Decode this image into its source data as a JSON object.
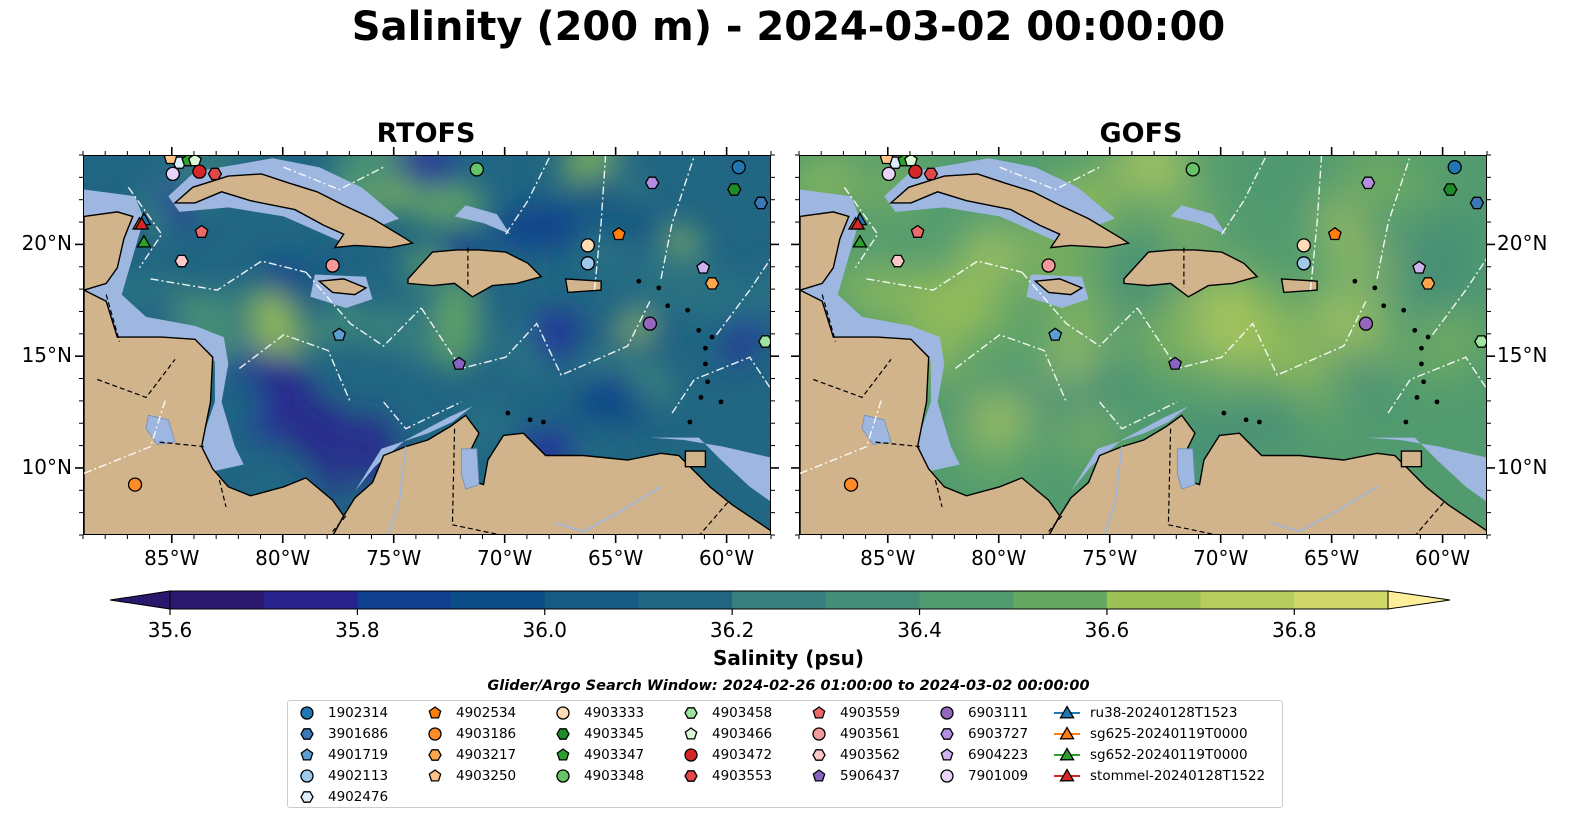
{
  "title": "Salinity (200 m) - 2024-03-02 00:00:00",
  "maps": [
    {
      "id": "rtofs",
      "title": "RTOFS"
    },
    {
      "id": "gofs",
      "title": "GOFS"
    }
  ],
  "axes": {
    "lon_labels": [
      "85°W",
      "80°W",
      "75°W",
      "70°W",
      "65°W",
      "60°W"
    ],
    "lat_labels": [
      "20°N",
      "15°N",
      "10°N"
    ],
    "lon_range": [
      -89,
      -58
    ],
    "lat_range": [
      7,
      24
    ]
  },
  "colorbar": {
    "label": "Salinity (psu)",
    "tick_labels": [
      "35.6",
      "35.8",
      "36.0",
      "36.2",
      "36.4",
      "36.6",
      "36.8"
    ],
    "range": [
      35.6,
      36.9
    ],
    "extend": "both",
    "colormap": "haline",
    "colors": [
      "#2a186c",
      "#29238e",
      "#24309e",
      "#0f3f8e",
      "#0d4d85",
      "#175a83",
      "#216683",
      "#2c7383",
      "#38807f",
      "#448e78",
      "#529b6f",
      "#66a863",
      "#81b45a",
      "#9cc156",
      "#b7cd5d",
      "#d2d96b",
      "#fdee99"
    ]
  },
  "colors": {
    "land": "#d2b48c",
    "shelf": "#9db7e0",
    "deep_pacific": "#2a186c"
  },
  "legend": {
    "caption": "Glider/Argo Search Window: 2024-02-26 01:00:00 to 2024-03-02 00:00:00",
    "items": [
      {
        "label": "1902314",
        "marker": "circle",
        "color": "#1f77b4"
      },
      {
        "label": "3901686",
        "marker": "hexagon",
        "color": "#3a78b6"
      },
      {
        "label": "4901719",
        "marker": "pentagon",
        "color": "#5b9fd0"
      },
      {
        "label": "4902113",
        "marker": "circle",
        "color": "#9ec9ea"
      },
      {
        "label": "4902476",
        "marker": "hexagon",
        "color": "#dbeefc"
      },
      {
        "label": "4902534",
        "marker": "pentagon",
        "color": "#ff7f0e"
      },
      {
        "label": "4903186",
        "marker": "circle",
        "color": "#ff8b2a"
      },
      {
        "label": "4903217",
        "marker": "hexagon",
        "color": "#ffa64d"
      },
      {
        "label": "4903250",
        "marker": "pentagon",
        "color": "#ffc38a"
      },
      {
        "label": "4903333",
        "marker": "circle",
        "color": "#ffdcb5"
      },
      {
        "label": "4903345",
        "marker": "hexagon",
        "color": "#1e8c2a"
      },
      {
        "label": "4903347",
        "marker": "pentagon",
        "color": "#2ca02c"
      },
      {
        "label": "4903348",
        "marker": "circle",
        "color": "#65c465"
      },
      {
        "label": "4903458",
        "marker": "hexagon",
        "color": "#9ee39e"
      },
      {
        "label": "4903466",
        "marker": "pentagon",
        "color": "#dcf9d6"
      },
      {
        "label": "4903472",
        "marker": "circle",
        "color": "#d62728"
      },
      {
        "label": "4903553",
        "marker": "hexagon",
        "color": "#e04848"
      },
      {
        "label": "4903559",
        "marker": "pentagon",
        "color": "#ee6a6a"
      },
      {
        "label": "4903561",
        "marker": "circle",
        "color": "#f59a9a"
      },
      {
        "label": "4903562",
        "marker": "hexagon",
        "color": "#fbc8c8"
      },
      {
        "label": "5906437",
        "marker": "pentagon",
        "color": "#8a63c2"
      },
      {
        "label": "6903111",
        "marker": "circle",
        "color": "#9467bd"
      },
      {
        "label": "6903727",
        "marker": "hexagon",
        "color": "#b48ee0"
      },
      {
        "label": "6904223",
        "marker": "pentagon",
        "color": "#cfb3ef"
      },
      {
        "label": "7901009",
        "marker": "circle",
        "color": "#e8d4fb"
      },
      {
        "label": "ru38-20240128T1523",
        "marker": "triangle-line",
        "color": "#1f77b4"
      },
      {
        "label": "sg625-20240119T0000",
        "marker": "triangle-line",
        "color": "#ff7f0e"
      },
      {
        "label": "sg652-20240119T0000",
        "marker": "triangle-line",
        "color": "#2ca02c"
      },
      {
        "label": "stommel-20240128T1522",
        "marker": "triangle-line",
        "color": "#d62728"
      }
    ]
  },
  "map_markers": [
    {
      "label": "1902314",
      "lon": -59.5,
      "lat": 23.5
    },
    {
      "label": "3901686",
      "lon": -58.5,
      "lat": 21.9
    },
    {
      "label": "4901719",
      "lon": -77.5,
      "lat": 16.0
    },
    {
      "label": "4902113",
      "lon": -66.3,
      "lat": 19.2
    },
    {
      "label": "4902476",
      "lon": -84.7,
      "lat": 23.7
    },
    {
      "label": "4902534",
      "lon": -64.9,
      "lat": 20.5
    },
    {
      "label": "4903186",
      "lon": -86.7,
      "lat": 9.3
    },
    {
      "label": "4903217",
      "lon": -60.7,
      "lat": 18.3
    },
    {
      "label": "4903250",
      "lon": -85.1,
      "lat": 23.9
    },
    {
      "label": "4903333",
      "lon": -66.3,
      "lat": 20.0
    },
    {
      "label": "4903345",
      "lon": -59.7,
      "lat": 22.5
    },
    {
      "label": "4903347",
      "lon": -84.3,
      "lat": 23.8
    },
    {
      "label": "4903348",
      "lon": -71.3,
      "lat": 23.4
    },
    {
      "label": "4903458",
      "lon": -58.3,
      "lat": 15.7
    },
    {
      "label": "4903466",
      "lon": -84.0,
      "lat": 23.8
    },
    {
      "label": "4903472",
      "lon": -83.8,
      "lat": 23.3
    },
    {
      "label": "4903553",
      "lon": -83.1,
      "lat": 23.2
    },
    {
      "label": "4903559",
      "lon": -83.7,
      "lat": 20.6
    },
    {
      "label": "4903561",
      "lon": -77.8,
      "lat": 19.1
    },
    {
      "label": "4903562",
      "lon": -84.6,
      "lat": 19.3
    },
    {
      "label": "5906437",
      "lon": -72.1,
      "lat": 14.7
    },
    {
      "label": "6903111",
      "lon": -63.5,
      "lat": 16.5
    },
    {
      "label": "6903727",
      "lon": -63.4,
      "lat": 22.8
    },
    {
      "label": "6904223",
      "lon": -61.1,
      "lat": 19.0
    },
    {
      "label": "7901009",
      "lon": -85.0,
      "lat": 23.2
    },
    {
      "label": "ru38-20240128T1523",
      "lon": -86.3,
      "lat": 21.1
    },
    {
      "label": "sg625-20240119T0000",
      "lon": -86.5,
      "lat": 20.9
    },
    {
      "label": "sg652-20240119T0000",
      "lon": -86.3,
      "lat": 20.1
    },
    {
      "label": "stommel-20240128T1522",
      "lon": -86.4,
      "lat": 20.9
    }
  ]
}
